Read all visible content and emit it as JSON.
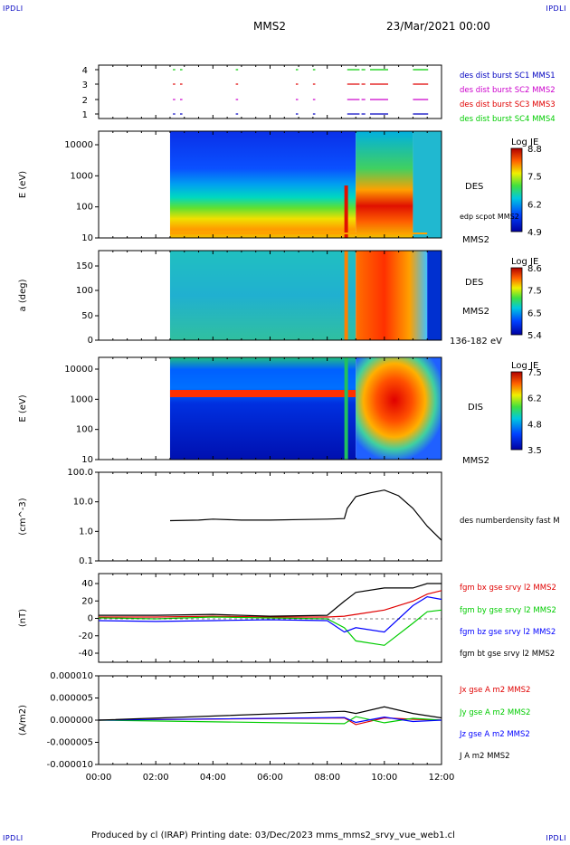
{
  "corner_tl": "IPDLI",
  "corner_tr": "IPDLI",
  "corner_bl": "IPDLI",
  "corner_br": "IPDLI",
  "spacecraft": "MMS2",
  "date": "23/Mar/2021 00:00",
  "footer": "Produced by cl (IRAP)   Printing date: 03/Dec/2023   mms_mms2_srvy_vue_web1.cl",
  "colors": {
    "red": "#e00000",
    "green": "#00cc00",
    "blue": "#0000ff",
    "magenta": "#cc00cc",
    "black": "#000000"
  },
  "chart_data": [
    {
      "type": "timeline",
      "y_ticks": [
        "1",
        "2",
        "3",
        "4"
      ],
      "legend": [
        {
          "label": "des dist burst SC1 MMS1",
          "color": "#0000c0"
        },
        {
          "label": "des dist burst SC2 MMS2",
          "color": "#cc00cc"
        },
        {
          "label": "des dist burst SC3 MMS3",
          "color": "#e00000"
        },
        {
          "label": "des dist burst SC4 MMS4",
          "color": "#00cc00"
        }
      ]
    },
    {
      "type": "heatmap",
      "ylabel": "E (eV)",
      "y_ticks": [
        "10000",
        "1000",
        "100",
        "10"
      ],
      "side_labels": [
        "DES",
        "edp scpot MMS2",
        "MMS2"
      ],
      "colorbar_title": "Log JE",
      "colorbar_ticks": [
        "8.8",
        "7.5",
        "6.2",
        "4.9"
      ]
    },
    {
      "type": "heatmap",
      "ylabel": "a (deg)",
      "y_ticks": [
        "150",
        "100",
        "50",
        "0"
      ],
      "side_labels": [
        "DES",
        "MMS2",
        "136-182 eV"
      ],
      "colorbar_title": "Log JE",
      "colorbar_ticks": [
        "8.6",
        "7.5",
        "6.5",
        "5.4"
      ]
    },
    {
      "type": "heatmap",
      "ylabel": "E (eV)",
      "y_ticks": [
        "10000",
        "1000",
        "100",
        "10"
      ],
      "side_labels": [
        "DIS",
        "MMS2"
      ],
      "colorbar_title": "Log JE",
      "colorbar_ticks": [
        "7.5",
        "6.2",
        "4.8",
        "3.5"
      ]
    },
    {
      "type": "line",
      "ylabel": "(cm^-3)",
      "y_ticks": [
        "100.0",
        "10.0",
        "1.0",
        "0.1"
      ],
      "ylim": [
        0.1,
        100
      ],
      "log_scale": true,
      "series": [
        {
          "name": "des numberdensity fast M",
          "color": "#000000",
          "x": [
            2.5,
            3.5,
            4.0,
            5.0,
            6.0,
            7.0,
            8.0,
            8.6,
            8.7,
            9.0,
            9.5,
            10.0,
            10.5,
            11.0,
            11.5,
            12.0
          ],
          "y": [
            2.3,
            2.4,
            2.6,
            2.4,
            2.4,
            2.5,
            2.6,
            2.7,
            6.0,
            15.0,
            20.0,
            25.0,
            16.0,
            6.0,
            1.5,
            0.5
          ]
        }
      ]
    },
    {
      "type": "line",
      "ylabel": "(nT)",
      "y_ticks": [
        "40",
        "20",
        "0",
        "-20",
        "-40"
      ],
      "ylim": [
        -50,
        50
      ],
      "series": [
        {
          "name": "fgm bx gse srvy l2 MMS2",
          "color": "#e00000",
          "x": [
            0,
            2,
            4,
            6,
            8,
            8.6,
            9,
            10,
            11,
            11.5,
            12
          ],
          "y": [
            2,
            2,
            3,
            2,
            2,
            3,
            5,
            10,
            20,
            28,
            32
          ]
        },
        {
          "name": "fgm by gse srvy l2 MMS2",
          "color": "#00cc00",
          "x": [
            0,
            2,
            4,
            6,
            8,
            8.6,
            9,
            10,
            11,
            11.5,
            12
          ],
          "y": [
            1,
            0,
            2,
            1,
            0,
            -10,
            -25,
            -30,
            -5,
            8,
            10
          ]
        },
        {
          "name": "fgm bz gse srvy l2 MMS2",
          "color": "#0000ff",
          "x": [
            0,
            2,
            4,
            6,
            8,
            8.6,
            9,
            10,
            11,
            11.5,
            12
          ],
          "y": [
            -2,
            -3,
            -2,
            -1,
            -2,
            -15,
            -10,
            -15,
            15,
            25,
            22
          ]
        },
        {
          "name": "fgm bt gse srvy l2 MMS2",
          "color": "#000000",
          "x": [
            0,
            2,
            4,
            6,
            8,
            8.6,
            9,
            10,
            11,
            11.5,
            12
          ],
          "y": [
            4,
            4,
            5,
            3,
            4,
            20,
            30,
            35,
            35,
            40,
            40
          ]
        }
      ]
    },
    {
      "type": "line",
      "ylabel": "(A/m2)",
      "y_ticks": [
        "0.000010",
        "0.000005",
        "0.000000",
        "-0.000005",
        "-0.000010"
      ],
      "ylim": [
        -1e-05,
        1e-05
      ],
      "series": [
        {
          "name": "Jx gse A m2 MMS2",
          "color": "#e00000",
          "x": [
            0,
            8.6,
            9,
            10,
            11,
            12
          ],
          "y": [
            0,
            5e-07,
            -1e-06,
            5e-07,
            2e-07,
            0
          ]
        },
        {
          "name": "Jy gse A m2 MMS2",
          "color": "#00cc00",
          "x": [
            0,
            8.6,
            9,
            10,
            11,
            12
          ],
          "y": [
            0,
            -8e-07,
            8e-07,
            -6e-07,
            4e-07,
            0
          ]
        },
        {
          "name": "Jz gse A m2 MMS2",
          "color": "#0000ff",
          "x": [
            0,
            8.6,
            9,
            10,
            11,
            12
          ],
          "y": [
            0,
            6e-07,
            -5e-07,
            7e-07,
            -3e-07,
            0
          ]
        },
        {
          "name": "J A m2 MMS2",
          "color": "#000000",
          "x": [
            0,
            8.6,
            9,
            10,
            11,
            12
          ],
          "y": [
            0,
            2e-06,
            1.5e-06,
            3e-06,
            1.5e-06,
            5e-07
          ]
        }
      ]
    }
  ],
  "x_ticks": [
    "00:00",
    "02:00",
    "04:00",
    "06:00",
    "08:00",
    "10:00",
    "12:00"
  ]
}
